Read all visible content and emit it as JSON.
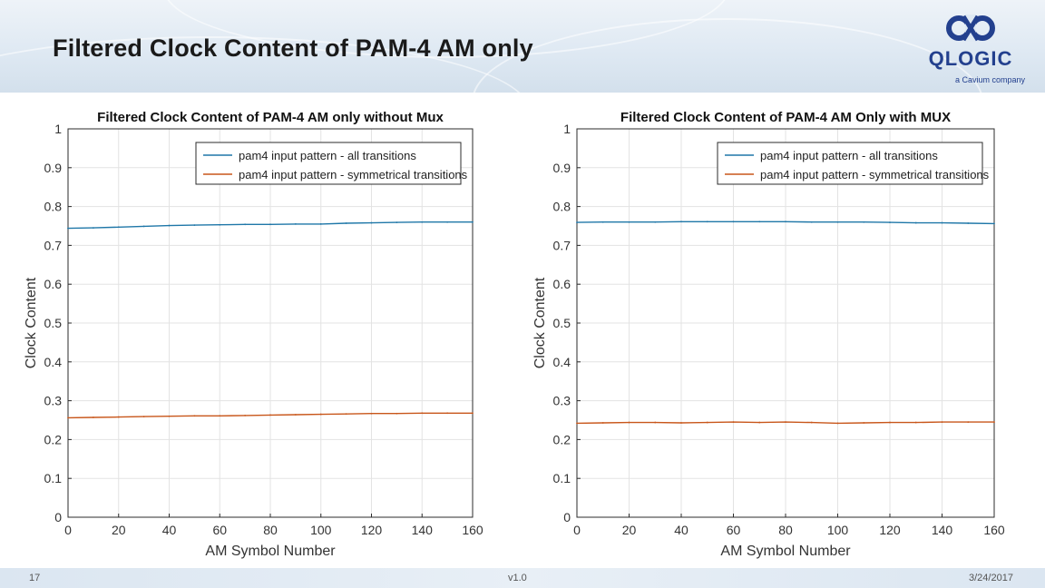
{
  "slide": {
    "title": "Filtered Clock Content of PAM-4 AM only",
    "logo_text": "QLOGIC",
    "logo_tagline": "a Cavium company",
    "page_number": "17",
    "version": "v1.0",
    "date": "3/24/2017"
  },
  "colors": {
    "all_transitions": "#1f77a8",
    "symmetrical_transitions": "#c8561a",
    "brand": "#23408e"
  },
  "chart_data": [
    {
      "type": "line",
      "title": "Filtered Clock Content of PAM-4 AM only without Mux",
      "xlabel": "AM Symbol Number",
      "ylabel": "Clock Content",
      "xlim": [
        0,
        160
      ],
      "ylim": [
        0,
        1
      ],
      "xticks": [
        "0",
        "20",
        "40",
        "60",
        "80",
        "100",
        "120",
        "140",
        "160"
      ],
      "yticks": [
        "0",
        "0.1",
        "0.2",
        "0.3",
        "0.4",
        "0.5",
        "0.6",
        "0.7",
        "0.8",
        "0.9",
        "1"
      ],
      "grid": true,
      "legend_position": "top-right",
      "x": [
        0,
        10,
        20,
        30,
        40,
        50,
        60,
        70,
        80,
        90,
        100,
        110,
        120,
        130,
        140,
        150,
        160
      ],
      "series": [
        {
          "name": "pam4 input pattern - all transitions",
          "values": [
            0.744,
            0.745,
            0.747,
            0.749,
            0.751,
            0.752,
            0.753,
            0.754,
            0.754,
            0.755,
            0.755,
            0.757,
            0.758,
            0.759,
            0.76,
            0.76,
            0.76
          ]
        },
        {
          "name": "pam4 input pattern - symmetrical transitions",
          "values": [
            0.256,
            0.257,
            0.258,
            0.259,
            0.26,
            0.261,
            0.261,
            0.262,
            0.263,
            0.264,
            0.265,
            0.266,
            0.267,
            0.267,
            0.268,
            0.268,
            0.268
          ]
        }
      ]
    },
    {
      "type": "line",
      "title": "Filtered Clock Content of PAM-4 AM Only with MUX",
      "xlabel": "AM Symbol Number",
      "ylabel": "Clock Content",
      "xlim": [
        0,
        160
      ],
      "ylim": [
        0,
        1
      ],
      "xticks": [
        "0",
        "20",
        "40",
        "60",
        "80",
        "100",
        "120",
        "140",
        "160"
      ],
      "yticks": [
        "0",
        "0.1",
        "0.2",
        "0.3",
        "0.4",
        "0.5",
        "0.6",
        "0.7",
        "0.8",
        "0.9",
        "1"
      ],
      "grid": true,
      "legend_position": "top-right",
      "x": [
        0,
        10,
        20,
        30,
        40,
        50,
        60,
        70,
        80,
        90,
        100,
        110,
        120,
        130,
        140,
        150,
        160
      ],
      "series": [
        {
          "name": "pam4 input pattern - all transitions",
          "values": [
            0.759,
            0.76,
            0.76,
            0.76,
            0.761,
            0.761,
            0.761,
            0.761,
            0.761,
            0.76,
            0.76,
            0.76,
            0.759,
            0.758,
            0.758,
            0.757,
            0.756
          ]
        },
        {
          "name": "pam4 input pattern - symmetrical transitions",
          "values": [
            0.242,
            0.243,
            0.244,
            0.244,
            0.243,
            0.244,
            0.245,
            0.244,
            0.245,
            0.244,
            0.242,
            0.243,
            0.244,
            0.244,
            0.245,
            0.245,
            0.245
          ]
        }
      ]
    }
  ]
}
